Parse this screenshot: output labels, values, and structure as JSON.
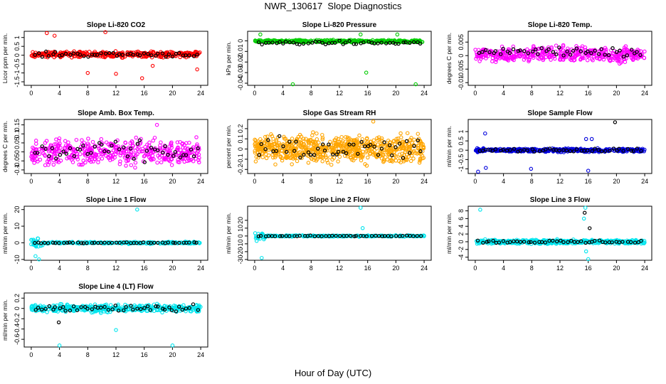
{
  "figure": {
    "title": "NWR_130617  Slope Diagnostics",
    "xlabel": "Hour of Day (UTC)",
    "x_ticks": [
      0,
      4,
      8,
      12,
      16,
      20,
      24
    ]
  },
  "chart_data": [
    {
      "type": "scatter",
      "title": "Slope Li-820 CO2",
      "ylabel": "Licor ppm per min.",
      "y_ticks": [
        -1.5,
        -1.0,
        -0.5,
        0.0,
        0.5,
        1.0
      ],
      "ylim": [
        -1.7,
        1.35
      ],
      "color": "#ff0000",
      "center": 0.05,
      "spread": 0.45,
      "n": 400,
      "outliers": [
        [
          2.2,
          1.25
        ],
        [
          3.3,
          1.1
        ],
        [
          8.0,
          -1.0
        ],
        [
          10.5,
          1.3
        ],
        [
          12.0,
          -1.05
        ],
        [
          15.7,
          -1.3
        ],
        [
          17.2,
          -0.6
        ],
        [
          23.5,
          -0.8
        ]
      ],
      "black_center": 0.05,
      "black_spread": 0.4
    },
    {
      "type": "scatter",
      "title": "Slope Li-820 Pressure",
      "ylabel": "kPa per min.",
      "y_ticks": [
        -0.04,
        -0.03,
        -0.02,
        -0.01,
        0.0
      ],
      "ylim": [
        -0.042,
        0.009
      ],
      "color": "#00cc00",
      "center": -0.0005,
      "spread": 0.0035,
      "n": 400,
      "outliers": [
        [
          0.8,
          0.006
        ],
        [
          5.4,
          -0.041
        ],
        [
          15.0,
          0.006
        ],
        [
          15.8,
          -0.03
        ],
        [
          20.2,
          0.006
        ],
        [
          22.8,
          -0.041
        ]
      ],
      "black_center": -0.002,
      "black_spread": 0.005
    },
    {
      "type": "scatter",
      "title": "Slope Li-820 Temp.",
      "ylabel": "degrees C per min.",
      "y_ticks": [
        -0.01,
        -0.005,
        0.0,
        0.005
      ],
      "ylim": [
        -0.011,
        0.009
      ],
      "color": "#ff00ff",
      "center": 0.0005,
      "spread": 0.008,
      "n": 450,
      "outliers": [],
      "black_center": 0.0015,
      "black_spread": 0.006
    },
    {
      "type": "scatter",
      "title": "Slope Amb. Box Temp.",
      "ylabel": "degrees C per min.",
      "y_ticks": [
        -0.1,
        -0.05,
        0.0,
        0.05,
        0.1,
        0.15
      ],
      "ylim": [
        -0.12,
        0.18
      ],
      "color": "#ff00ff",
      "center": 0.0,
      "spread": 0.2,
      "n": 450,
      "outliers": [
        [
          17.8,
          0.15
        ]
      ],
      "black_center": 0.0,
      "black_spread": 0.16
    },
    {
      "type": "scatter",
      "title": "Slope Gas Stream RH",
      "ylabel": "percent per min.",
      "y_ticks": [
        -0.2,
        -0.1,
        0.0,
        0.1,
        0.2
      ],
      "ylim": [
        -0.24,
        0.29
      ],
      "color": "#ffa500",
      "center": 0.0,
      "spread": 0.38,
      "n": 700,
      "outliers": [
        [
          16.8,
          0.27
        ]
      ],
      "black_center": 0.0,
      "black_spread": 0.3
    },
    {
      "type": "scatter",
      "title": "Slope Sample Flow",
      "ylabel": "ml/min per min.",
      "y_ticks": [
        -1.0,
        -0.5,
        0.0,
        0.5,
        1.0
      ],
      "ylim": [
        -1.25,
        1.65
      ],
      "color": "#0000dd",
      "center": 0.0,
      "spread": 0.25,
      "n": 450,
      "outliers": [
        [
          0.4,
          -1.15
        ],
        [
          1.4,
          0.9
        ],
        [
          1.5,
          -0.95
        ],
        [
          7.9,
          -1.0
        ],
        [
          15.7,
          0.6
        ],
        [
          16.0,
          -1.1
        ],
        [
          16.5,
          0.6
        ]
      ],
      "black_center": 0.0,
      "black_spread": 0.3,
      "black_outliers": [
        [
          19.8,
          1.5
        ]
      ]
    },
    {
      "type": "scatter",
      "title": "Slope Line 1 Flow",
      "ylabel": "ml/min per min.",
      "y_ticks": [
        -10,
        0,
        10,
        20
      ],
      "ylim": [
        -10.5,
        22
      ],
      "color": "#00e5ee",
      "center": 0.0,
      "spread": 1.6,
      "n": 300,
      "cluster_end": 1.6,
      "cluster_spread": 8,
      "outliers": [
        [
          15.0,
          20
        ],
        [
          0.6,
          -8
        ],
        [
          1.1,
          -10
        ]
      ],
      "black_center": 0.0,
      "black_spread": 0.8
    },
    {
      "type": "scatter",
      "title": "Slope Line 2 Flow",
      "ylabel": "ml/min per min.",
      "y_ticks": [
        -30,
        -20,
        -10,
        0,
        10,
        20
      ],
      "ylim": [
        -31,
        38
      ],
      "color": "#00e5ee",
      "center": 0.0,
      "spread": 2.5,
      "n": 300,
      "cluster_end": 1.6,
      "cluster_spread": 18,
      "outliers": [
        [
          15.0,
          36
        ],
        [
          15.3,
          10
        ],
        [
          1.0,
          -28
        ]
      ],
      "black_center": 0.0,
      "black_spread": 1.5
    },
    {
      "type": "scatter",
      "title": "Slope Line 3 Flow",
      "ylabel": "ml/min per min.",
      "y_ticks": [
        -4,
        -2,
        0,
        2,
        4,
        6,
        8
      ],
      "ylim": [
        -4.8,
        9.2
      ],
      "color": "#00e5ee",
      "center": 0.0,
      "spread": 1.4,
      "n": 500,
      "outliers": [
        [
          0.7,
          8.3
        ],
        [
          15.6,
          8.8
        ],
        [
          15.7,
          -2.5
        ],
        [
          16.0,
          -4.5
        ],
        [
          15.4,
          6
        ]
      ],
      "black_center": 0.0,
      "black_spread": 1.2,
      "black_outliers": [
        [
          15.5,
          7.5
        ],
        [
          16.2,
          3.5
        ]
      ]
    },
    {
      "type": "scatter",
      "title": "Slope Line 4 (LT) Flow",
      "ylabel": "ml/min per min.",
      "y_ticks": [
        -0.6,
        -0.4,
        -0.2,
        0.0,
        0.2
      ],
      "ylim": [
        -0.75,
        0.3
      ],
      "color": "#00e5ee",
      "center": 0.0,
      "spread": 0.2,
      "n": 420,
      "outliers": [
        [
          4.0,
          -0.72
        ],
        [
          12.0,
          -0.42
        ],
        [
          20.0,
          -0.72
        ]
      ],
      "black_center": 0.0,
      "black_spread": 0.2,
      "black_outliers": [
        [
          3.9,
          -0.27
        ]
      ]
    }
  ]
}
